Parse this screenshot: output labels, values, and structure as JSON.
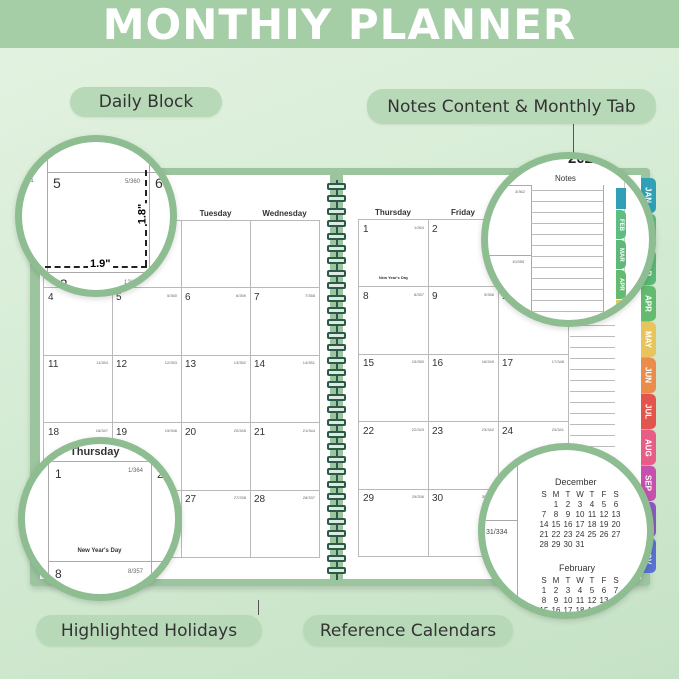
{
  "title": "MONTHIY PLANNER",
  "labels": {
    "daily_block": "Daily Block",
    "notes_tab": "Notes Content & Monthly Tab",
    "holidays": "Highlighted Holidays",
    "reference": "Reference Calendars"
  },
  "colors": {
    "accent": "#8dbd90",
    "cover": "#9cc49f",
    "spiral": "#2c5a48"
  },
  "planner": {
    "year": "202",
    "left_headers": [
      "",
      "",
      "Tuesday",
      "Wednesday"
    ],
    "right_headers": [
      "Thursday",
      "Friday",
      "",
      ""
    ],
    "notes_header": "Notes",
    "left_rows": [
      [
        null,
        null,
        null,
        null
      ],
      [
        {
          "d": "4",
          "c": ""
        },
        {
          "d": "5",
          "c": "5/360"
        },
        {
          "d": "6",
          "c": "6/359"
        },
        {
          "d": "7",
          "c": "7/358"
        }
      ],
      [
        {
          "d": "11",
          "c": "11/354"
        },
        {
          "d": "12",
          "c": "12/353"
        },
        {
          "d": "13",
          "c": "13/352"
        },
        {
          "d": "14",
          "c": "14/351"
        }
      ],
      [
        {
          "d": "18",
          "c": "18/347"
        },
        {
          "d": "19",
          "c": "19/346"
        },
        {
          "d": "20",
          "c": "20/345"
        },
        {
          "d": "21",
          "c": "21/344"
        }
      ],
      [
        {
          "d": "25",
          "c": "25/340"
        },
        {
          "d": "26",
          "c": "26/339"
        },
        {
          "d": "27",
          "c": "27/338"
        },
        {
          "d": "28",
          "c": "28/337"
        }
      ]
    ],
    "right_rows": [
      [
        {
          "d": "1",
          "c": "1/364",
          "h": "New Year's Day"
        },
        {
          "d": "2",
          "c": "2/363"
        },
        {
          "d": "3",
          "c": "3/362"
        }
      ],
      [
        {
          "d": "8",
          "c": "8/357"
        },
        {
          "d": "9",
          "c": "9/356"
        },
        {
          "d": "10",
          "c": "10/355"
        }
      ],
      [
        {
          "d": "15",
          "c": "15/350"
        },
        {
          "d": "16",
          "c": "16/349"
        },
        {
          "d": "17",
          "c": "17/348"
        }
      ],
      [
        {
          "d": "22",
          "c": "22/343"
        },
        {
          "d": "23",
          "c": "23/342"
        },
        {
          "d": "24",
          "c": "24/341"
        }
      ],
      [
        {
          "d": "29",
          "c": "29/336"
        },
        {
          "d": "30",
          "c": "30/335"
        },
        {
          "d": "31",
          "c": "31/334"
        }
      ]
    ],
    "tabs": [
      {
        "label": "JAN",
        "color": "#2fa0b6"
      },
      {
        "label": "FEB",
        "color": "#5fbc82"
      },
      {
        "label": "MAR",
        "color": "#5cb978"
      },
      {
        "label": "APR",
        "color": "#63bb70"
      },
      {
        "label": "MAY",
        "color": "#e7c55c"
      },
      {
        "label": "JUN",
        "color": "#ea8c4c"
      },
      {
        "label": "JUL",
        "color": "#e2544c"
      },
      {
        "label": "AUG",
        "color": "#e85d86"
      },
      {
        "label": "SEP",
        "color": "#c651ad"
      },
      {
        "label": "OCT",
        "color": "#8c59c2"
      },
      {
        "label": "NOV",
        "color": "#5a72d2"
      }
    ]
  },
  "daily_zoom": {
    "d1": "5",
    "c1": "5/360",
    "d2": "6",
    "d3": "12",
    "c3": "12/353",
    "height": "1.8\"",
    "width": "1.9\"",
    "prev": "/361"
  },
  "holiday_zoom": {
    "weekday": "Thursday",
    "d1": "1",
    "c1": "1/364",
    "d2": "2",
    "holiday": "New Year's Day",
    "d3": "8",
    "c3": "8/357",
    "d4": "9"
  },
  "notes_zoom": {
    "year": "202",
    "notes": "Notes",
    "c1": "3/362",
    "c2": "10/355",
    "tabs": [
      "FEB",
      "MAR",
      "APR"
    ],
    "tabs2": [
      "JAN",
      "FEB",
      "MAR",
      "APR"
    ]
  },
  "reference_zoom": {
    "prev": "31/334",
    "december": {
      "name": "December",
      "dow": [
        "S",
        "M",
        "T",
        "W",
        "T",
        "F",
        "S"
      ],
      "days": [
        "",
        "1",
        "2",
        "3",
        "4",
        "5",
        "6",
        "7",
        "8",
        "9",
        "10",
        "11",
        "12",
        "13",
        "14",
        "15",
        "16",
        "17",
        "18",
        "19",
        "20",
        "21",
        "22",
        "23",
        "24",
        "25",
        "26",
        "27",
        "28",
        "29",
        "30",
        "31"
      ]
    },
    "february": {
      "name": "February",
      "dow": [
        "S",
        "M",
        "T",
        "W",
        "T",
        "F",
        "S"
      ],
      "days": [
        "1",
        "2",
        "3",
        "4",
        "5",
        "6",
        "7",
        "8",
        "9",
        "10",
        "11",
        "12",
        "13",
        "14",
        "15",
        "16",
        "17",
        "18",
        "19",
        "20",
        "21"
      ]
    }
  }
}
